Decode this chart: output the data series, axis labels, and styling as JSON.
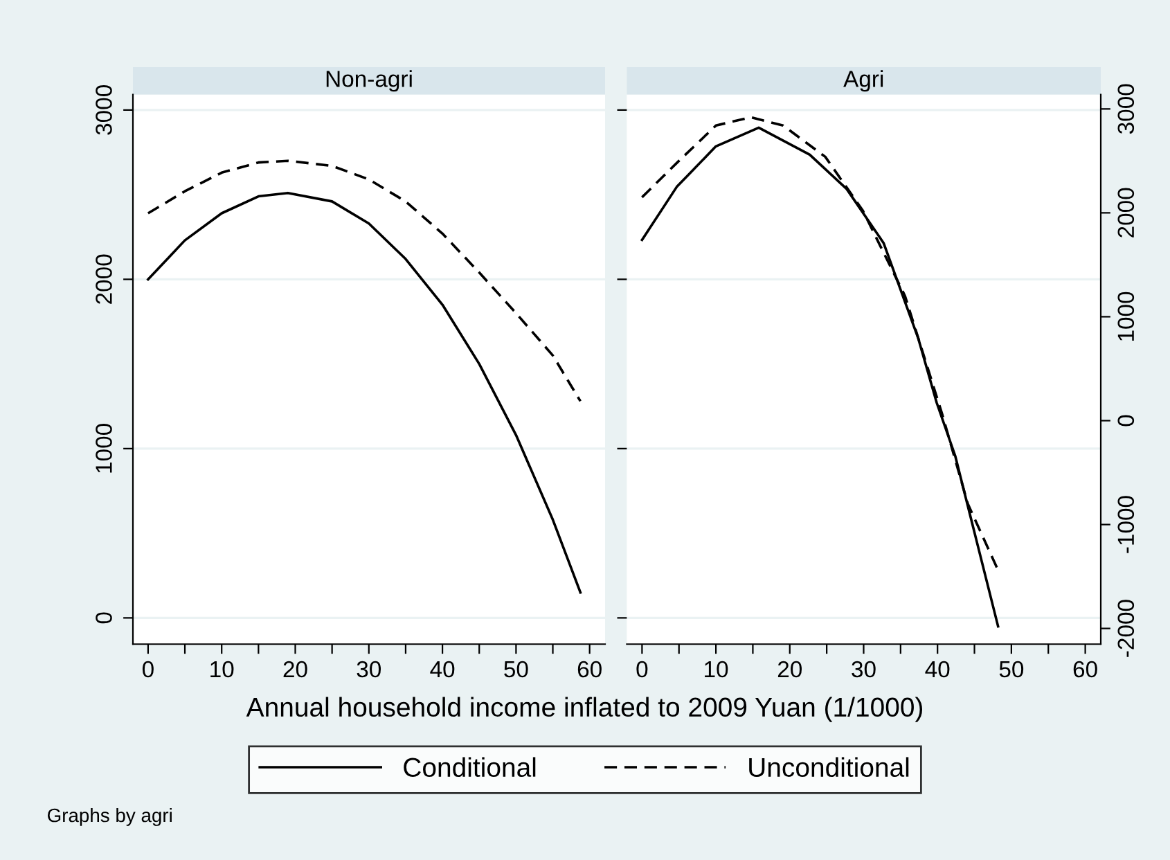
{
  "chart_data": [
    {
      "type": "line",
      "title": "Non-agri",
      "xlabel": "Annual household income inflated to 2009 Yuan (1/1000)",
      "annotations": [
        "Graphs by agri"
      ],
      "legend": "bottom",
      "grid": "y",
      "xlim": [
        -2.06,
        62.1
      ],
      "ylim": [
        -155,
        3091
      ],
      "xticks": [
        0,
        {
          "value": 5,
          "label": null
        },
        10,
        {
          "value": 15,
          "label": null
        },
        20,
        {
          "value": 25,
          "label": null
        },
        30,
        {
          "value": 35,
          "label": null
        },
        40,
        {
          "value": 45,
          "label": null
        },
        50,
        {
          "value": 55,
          "label": null
        },
        60
      ],
      "yticks": [
        0,
        1000,
        2000,
        3000
      ],
      "series": [
        {
          "name": "Conditional",
          "color": "#000000",
          "line_style": "solid",
          "x": [
            0,
            5,
            10,
            15,
            19,
            25,
            30,
            35,
            40,
            45,
            50,
            55,
            58.75
          ],
          "values": [
            2000,
            2230,
            2390,
            2490,
            2510,
            2460,
            2330,
            2120,
            1850,
            1500,
            1080,
            580,
            150
          ]
        },
        {
          "name": "Unconditional",
          "color": "#000000",
          "line_style": "dashed",
          "x": [
            0,
            5,
            10,
            15,
            19,
            25,
            30,
            35,
            40,
            45,
            50,
            55,
            58.75
          ],
          "values": [
            2390,
            2520,
            2630,
            2690,
            2700,
            2670,
            2590,
            2460,
            2270,
            2040,
            1800,
            1550,
            1280
          ]
        }
      ]
    },
    {
      "type": "line",
      "title": "Agri",
      "grid": "y",
      "xlim": [
        -2.06,
        62.1
      ],
      "y2lim": [
        -2151,
        3138
      ],
      "xticks": [
        0,
        {
          "value": 5,
          "label": null
        },
        10,
        {
          "value": 15,
          "label": null
        },
        20,
        {
          "value": 25,
          "label": null
        },
        30,
        {
          "value": 35,
          "label": null
        },
        40,
        {
          "value": 45,
          "label": null
        },
        50,
        {
          "value": 55,
          "label": null
        },
        60
      ],
      "y2ticks": [
        -2000,
        -1000,
        0,
        1000,
        2000,
        3000
      ],
      "series": [
        {
          "color": "#000000",
          "line_style": "solid",
          "axis": "y2",
          "x": [
            0,
            4.7,
            10,
            15.8,
            22.7,
            27.7,
            32.7,
            37.4,
            39.9,
            42.4,
            48.2
          ],
          "values": [
            1740,
            2250,
            2640,
            2820,
            2560,
            2230,
            1710,
            790,
            170,
            -340,
            -1980
          ]
        },
        {
          "color": "#000000",
          "line_style": "dashed",
          "axis": "y2",
          "x": [
            0,
            4.7,
            10,
            14.7,
            19.1,
            24.8,
            29.9,
            35.6,
            40.6,
            44.1,
            48.2
          ],
          "values": [
            2150,
            2480,
            2840,
            2920,
            2840,
            2540,
            2020,
            1200,
            70,
            -800,
            -1440
          ]
        }
      ]
    }
  ]
}
